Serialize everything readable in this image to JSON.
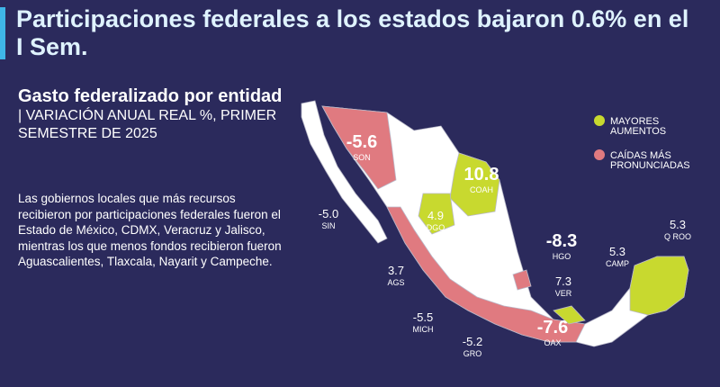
{
  "header": {
    "title": "Participaciones federales a los estados bajaron 0.6% en el I Sem."
  },
  "subtitle": {
    "bold": "Gasto federalizado por entidad",
    "rest": "| VARIACIÓN ANUAL REAL %, PRIMER SEMESTRE DE 2025"
  },
  "body": "Las gobiernos locales que más recursos recibieron por participaciones federales fueron el Estado de México, CDMX, Veracruz y Jalisco, mientras los que menos fondos recibieron fueron Aguascalientes, Tlaxcala, Nayarit y Campeche.",
  "legend": [
    {
      "label": "MAYORES AUMENTOS",
      "color": "#c8d92f"
    },
    {
      "label": "CAÍDAS MÁS PRONUNCIADAS",
      "color": "#e07a80"
    }
  ],
  "labels": [
    {
      "value": "-5.6",
      "state": "SON"
    },
    {
      "value": "10.8",
      "state": "COAH"
    },
    {
      "value": "-5.0",
      "state": "SIN"
    },
    {
      "value": "4.9",
      "state": "DGO"
    },
    {
      "value": "-8.3",
      "state": "HGO"
    },
    {
      "value": "5.3",
      "state": "Q ROO"
    },
    {
      "value": "5.3",
      "state": "CAMP"
    },
    {
      "value": "3.7",
      "state": "AGS"
    },
    {
      "value": "7.3",
      "state": "VER"
    },
    {
      "value": "-5.5",
      "state": "MICH"
    },
    {
      "value": "-7.6",
      "state": "OAX"
    },
    {
      "value": "-5.2",
      "state": "GRO"
    }
  ]
}
